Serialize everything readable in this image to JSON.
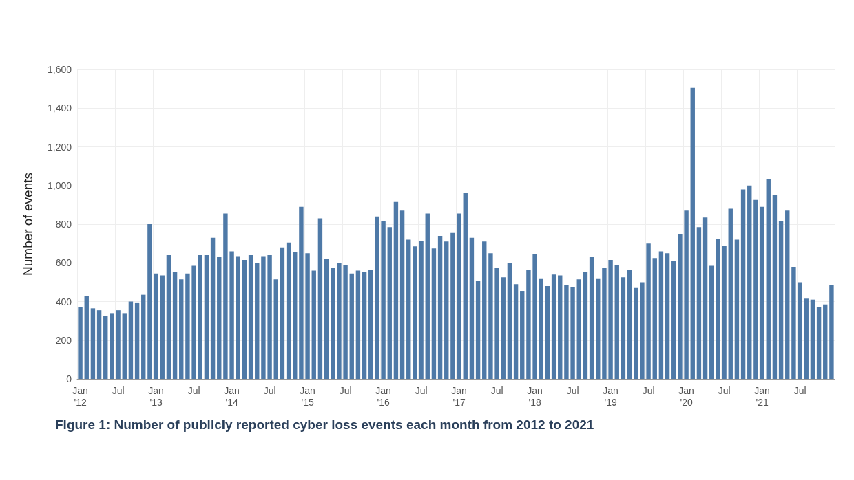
{
  "chart_data": {
    "type": "bar",
    "title": "Figure 1: Number of publicly reported cyber loss events each month from 2012 to 2021",
    "ylabel": "Number of events",
    "categories": [
      "Jan\n'12",
      null,
      null,
      null,
      null,
      null,
      "Jul",
      null,
      null,
      null,
      null,
      null,
      "Jan\n'13",
      null,
      null,
      null,
      null,
      null,
      "Jul",
      null,
      null,
      null,
      null,
      null,
      "Jan\n'14",
      null,
      null,
      null,
      null,
      null,
      "Jul",
      null,
      null,
      null,
      null,
      null,
      "Jan\n'15",
      null,
      null,
      null,
      null,
      null,
      "Jul",
      null,
      null,
      null,
      null,
      null,
      "Jan\n'16",
      null,
      null,
      null,
      null,
      null,
      "Jul",
      null,
      null,
      null,
      null,
      null,
      "Jan\n'17",
      null,
      null,
      null,
      null,
      null,
      "Jul",
      null,
      null,
      null,
      null,
      null,
      "Jan\n'18",
      null,
      null,
      null,
      null,
      null,
      "Jul",
      null,
      null,
      null,
      null,
      null,
      "Jan\n'19",
      null,
      null,
      null,
      null,
      null,
      "Jul",
      null,
      null,
      null,
      null,
      null,
      "Jan\n'20",
      null,
      null,
      null,
      null,
      null,
      "Jul",
      null,
      null,
      null,
      null,
      null,
      "Jan\n'21",
      null,
      null,
      null,
      null,
      null,
      "Jul",
      null,
      null,
      null,
      null,
      null
    ],
    "values": [
      370,
      430,
      365,
      355,
      325,
      340,
      355,
      340,
      400,
      395,
      435,
      800,
      545,
      535,
      640,
      555,
      515,
      545,
      585,
      640,
      640,
      730,
      630,
      855,
      660,
      635,
      615,
      640,
      600,
      635,
      640,
      515,
      680,
      705,
      655,
      890,
      650,
      560,
      830,
      620,
      575,
      600,
      590,
      545,
      560,
      555,
      565,
      840,
      815,
      785,
      915,
      870,
      720,
      685,
      715,
      855,
      675,
      740,
      710,
      755,
      855,
      960,
      730,
      505,
      710,
      650,
      575,
      525,
      600,
      490,
      455,
      565,
      645,
      520,
      480,
      540,
      535,
      485,
      475,
      515,
      555,
      630,
      520,
      575,
      615,
      590,
      525,
      565,
      470,
      500,
      700,
      625,
      660,
      650,
      610,
      750,
      870,
      1505,
      785,
      835,
      585,
      725,
      690,
      880,
      720,
      980,
      1000,
      925,
      890,
      1035,
      950,
      815,
      870,
      580,
      500,
      415,
      410,
      370,
      385,
      485
    ],
    "color": "#4e79a7",
    "ylim": [
      0,
      1600
    ],
    "yticks": [
      {
        "value": 0,
        "label": "0"
      },
      {
        "value": 200,
        "label": "200"
      },
      {
        "value": 400,
        "label": "400"
      },
      {
        "value": 600,
        "label": "600"
      },
      {
        "value": 800,
        "label": "800"
      },
      {
        "value": 1000,
        "label": "1,000"
      },
      {
        "value": 1200,
        "label": "1,200"
      },
      {
        "value": 1400,
        "label": "1,400"
      },
      {
        "value": 1600,
        "label": "1,600"
      }
    ],
    "grid": true
  }
}
